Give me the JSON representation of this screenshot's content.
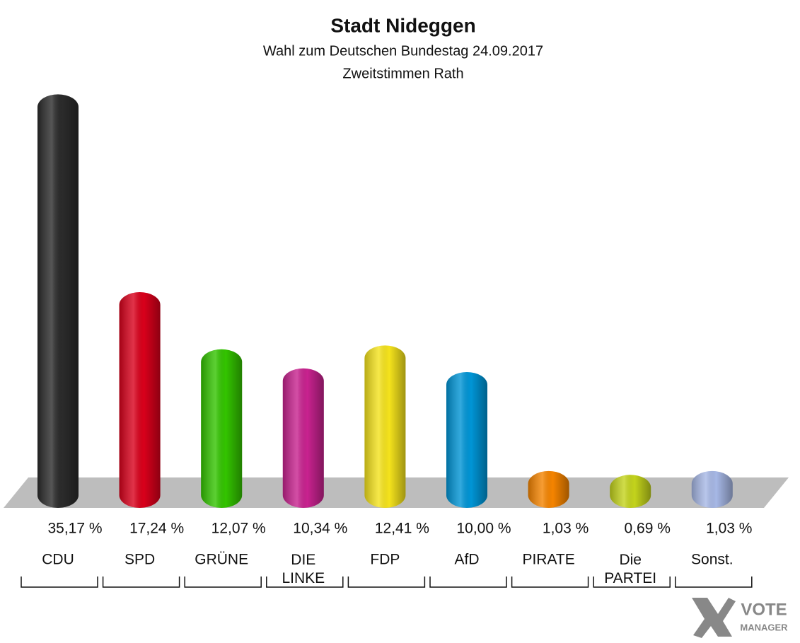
{
  "chart_data": {
    "type": "bar",
    "title": "Stadt Nideggen",
    "subtitle": "Wahl zum Deutschen Bundestag 24.09.2017",
    "subtitle2": "Zweitstimmen Rath",
    "categories": [
      "CDU",
      "SPD",
      "GRÜNE",
      "DIE LINKE",
      "FDP",
      "AfD",
      "PIRATE",
      "Die PARTEI",
      "Sonst."
    ],
    "values": [
      35.17,
      17.24,
      12.07,
      10.34,
      12.41,
      10.0,
      1.03,
      0.69,
      1.03
    ],
    "value_labels": [
      "35,17 %",
      "17,24 %",
      "12,07 %",
      "10,34 %",
      "12,41 %",
      "10,00 %",
      "1,03 %",
      "0,69 %",
      "1,03 %"
    ],
    "colors": [
      "#2b2b2b",
      "#d9001b",
      "#33c400",
      "#c8228f",
      "#f5e31c",
      "#0095d6",
      "#f58400",
      "#c4d41c",
      "#a7b8e6"
    ]
  },
  "logo": {
    "line1": "VOTE",
    "line2": "MANAGER"
  }
}
